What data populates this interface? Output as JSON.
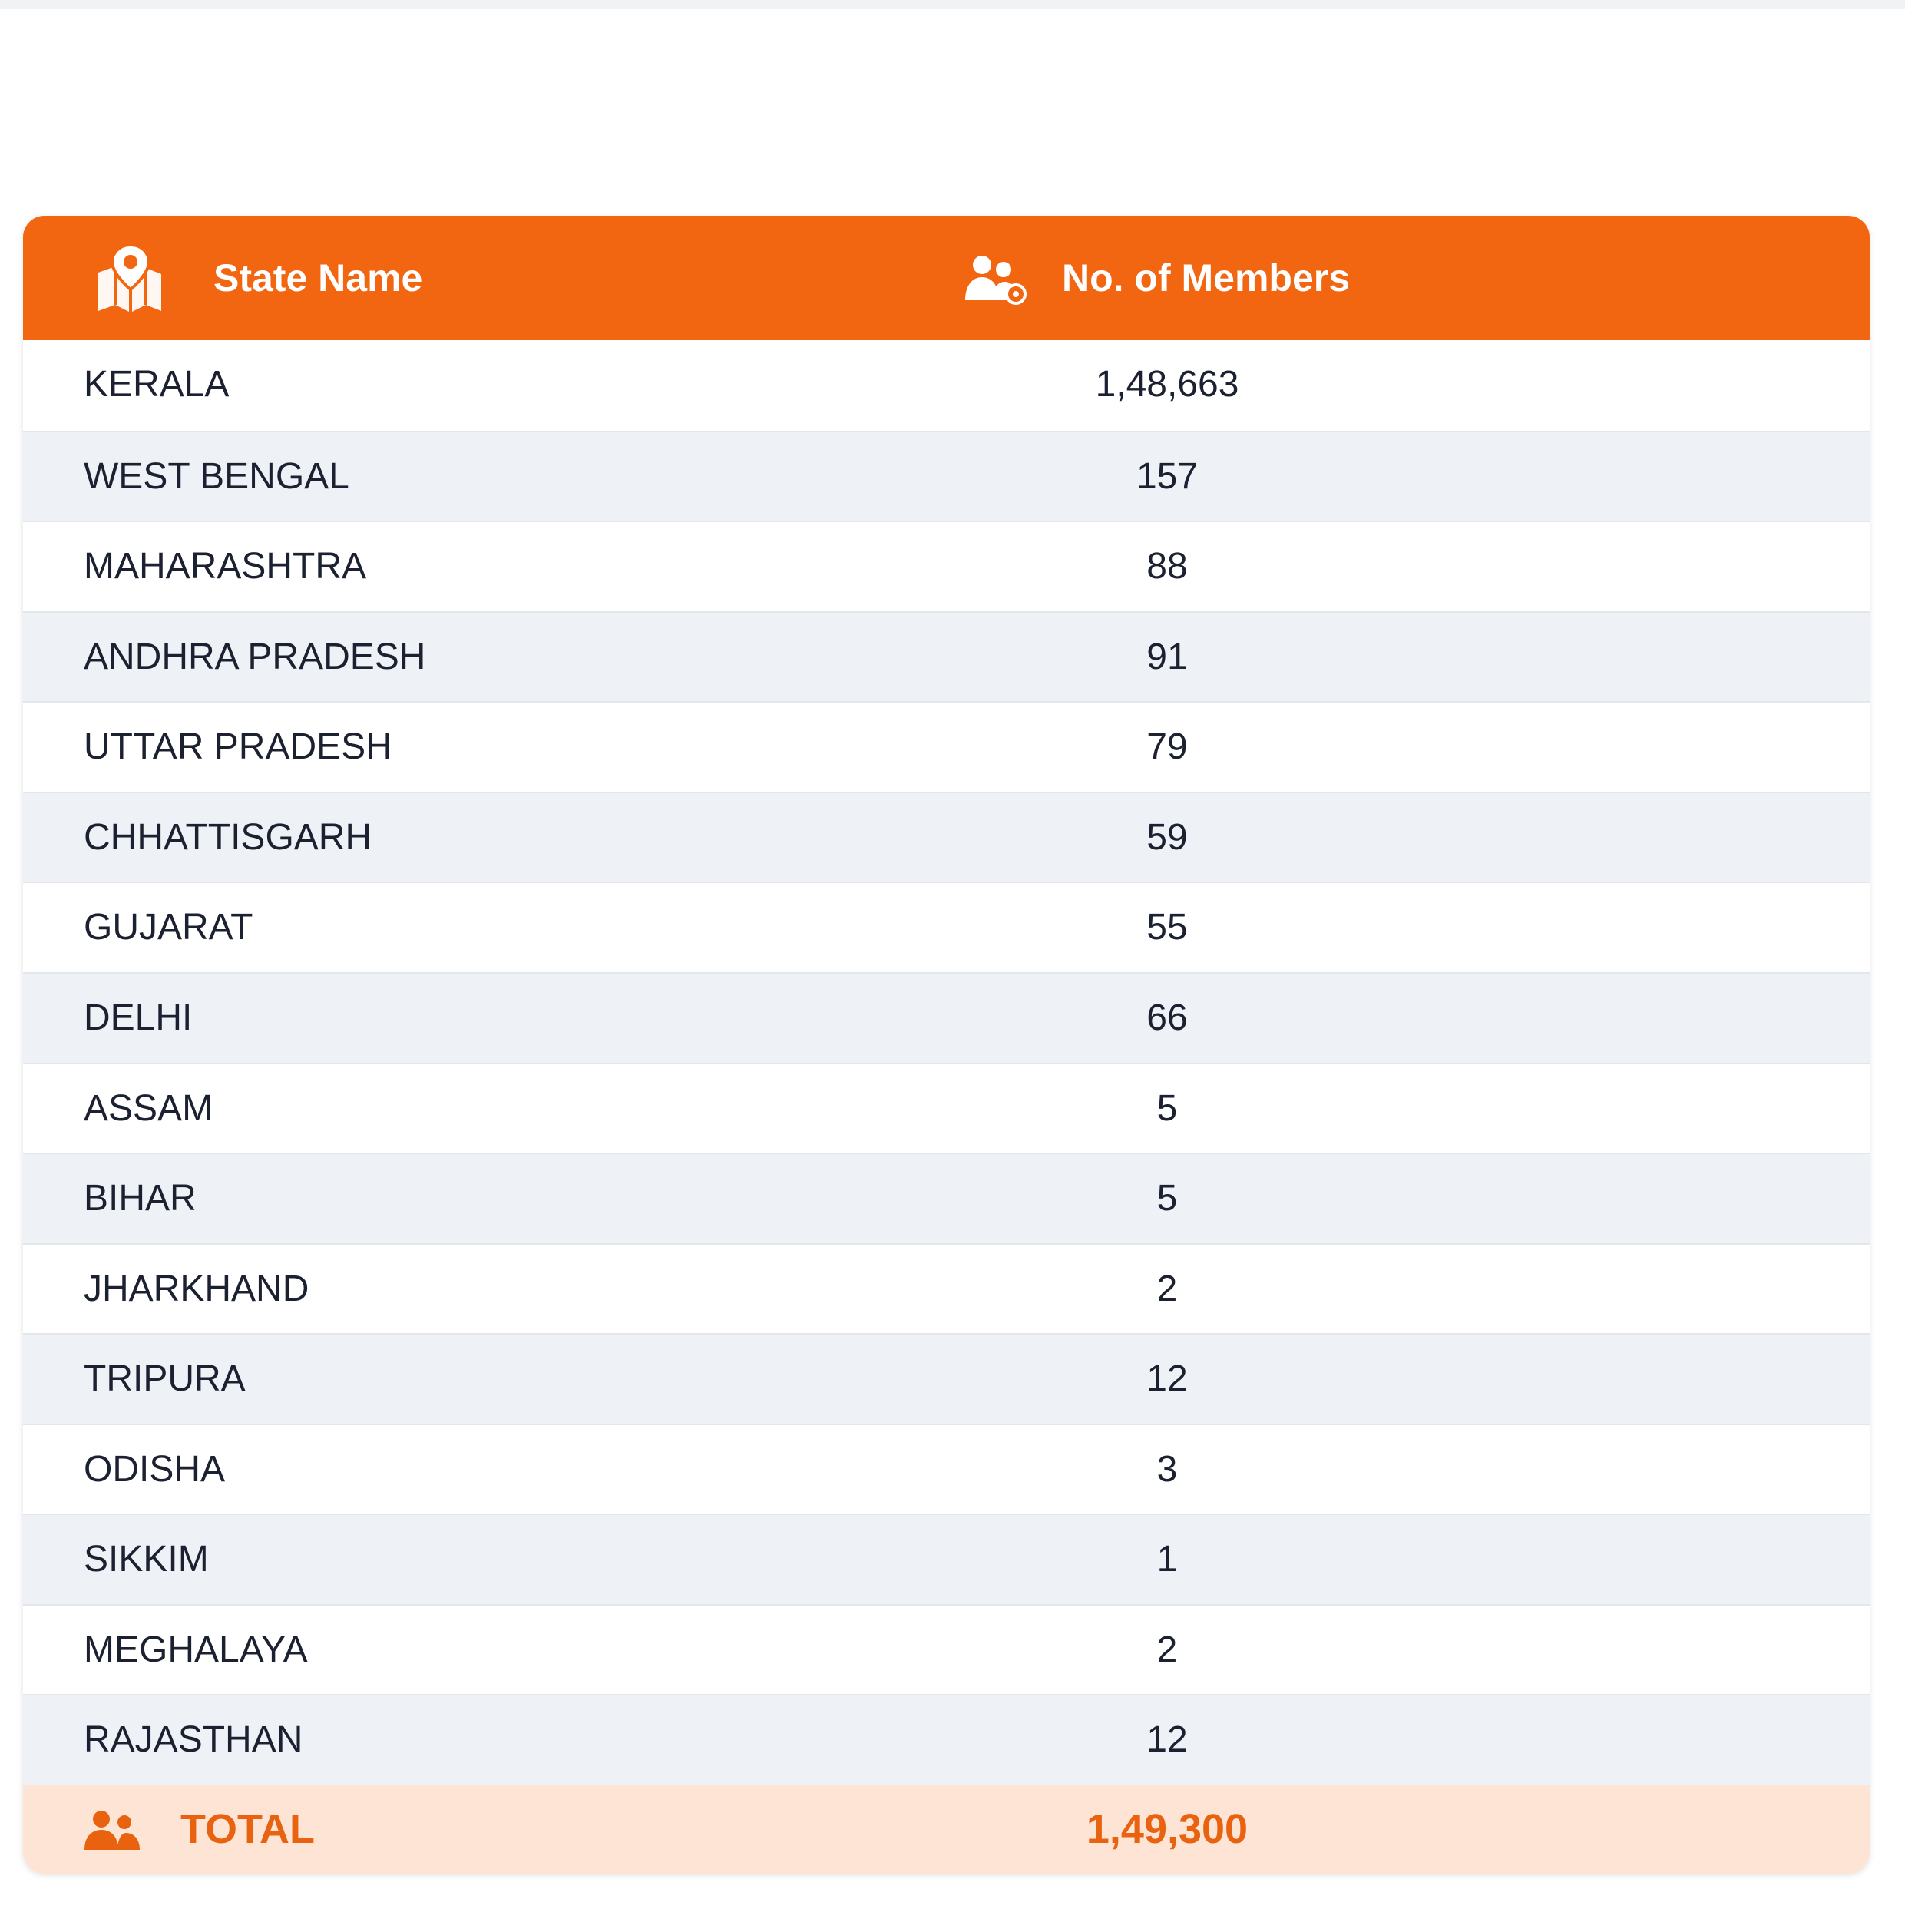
{
  "header": {
    "columns": [
      "State Name",
      "No. of Members"
    ]
  },
  "table": {
    "rows": [
      [
        "KERALA",
        "1,48,663"
      ],
      [
        "WEST BENGAL",
        "157"
      ],
      [
        "MAHARASHTRA",
        "88"
      ],
      [
        "ANDHRA PRADESH",
        "91"
      ],
      [
        "UTTAR PRADESH",
        "79"
      ],
      [
        "CHHATTISGARH",
        "59"
      ],
      [
        "GUJARAT",
        "55"
      ],
      [
        "DELHI",
        "66"
      ],
      [
        "ASSAM",
        "5"
      ],
      [
        "BIHAR",
        "5"
      ],
      [
        "JHARKHAND",
        "2"
      ],
      [
        "TRIPURA",
        "12"
      ],
      [
        "ODISHA",
        "3"
      ],
      [
        "SIKKIM",
        "1"
      ],
      [
        "MEGHALAYA",
        "2"
      ],
      [
        "RAJASTHAN",
        "12"
      ]
    ]
  },
  "total": {
    "label": "TOTAL",
    "value": "1,49,300"
  }
}
